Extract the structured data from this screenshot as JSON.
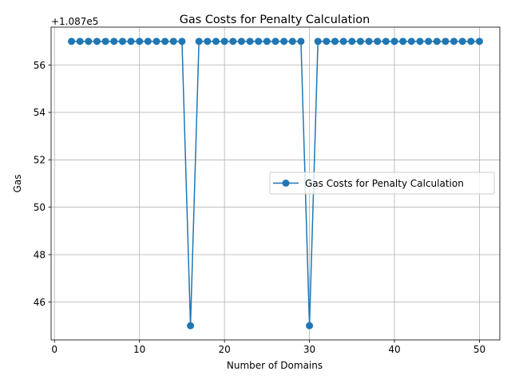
{
  "chart_data": {
    "type": "line",
    "title": "Gas Costs for Penalty Calculation",
    "xlabel": "Number of Domains",
    "ylabel": "Gas",
    "offset_label": "+1.087e5",
    "y_offset": 108700,
    "xlim": [
      -0.4,
      52.4
    ],
    "ylim": [
      44.4,
      57.6
    ],
    "xticks": [
      0,
      10,
      20,
      30,
      40,
      50
    ],
    "yticks": [
      46,
      48,
      50,
      52,
      54,
      56
    ],
    "xtick_labels": [
      "0",
      "10",
      "20",
      "30",
      "40",
      "50"
    ],
    "ytick_labels": [
      "46",
      "48",
      "50",
      "52",
      "54",
      "56"
    ],
    "grid": true,
    "legend_position": "center-right",
    "series": [
      {
        "name": "Gas Costs for Penalty Calculation",
        "color": "#1f77b4",
        "marker": "circle",
        "x": [
          2,
          3,
          4,
          5,
          6,
          7,
          8,
          9,
          10,
          11,
          12,
          13,
          14,
          15,
          16,
          17,
          18,
          19,
          20,
          21,
          22,
          23,
          24,
          25,
          26,
          27,
          28,
          29,
          30,
          31,
          32,
          33,
          34,
          35,
          36,
          37,
          38,
          39,
          40,
          41,
          42,
          43,
          44,
          45,
          46,
          47,
          48,
          49,
          50
        ],
        "y": [
          108757,
          108757,
          108757,
          108757,
          108757,
          108757,
          108757,
          108757,
          108757,
          108757,
          108757,
          108757,
          108757,
          108757,
          108745,
          108757,
          108757,
          108757,
          108757,
          108757,
          108757,
          108757,
          108757,
          108757,
          108757,
          108757,
          108757,
          108757,
          108745,
          108757,
          108757,
          108757,
          108757,
          108757,
          108757,
          108757,
          108757,
          108757,
          108757,
          108757,
          108757,
          108757,
          108757,
          108757,
          108757,
          108757,
          108757,
          108757,
          108757
        ]
      }
    ]
  }
}
